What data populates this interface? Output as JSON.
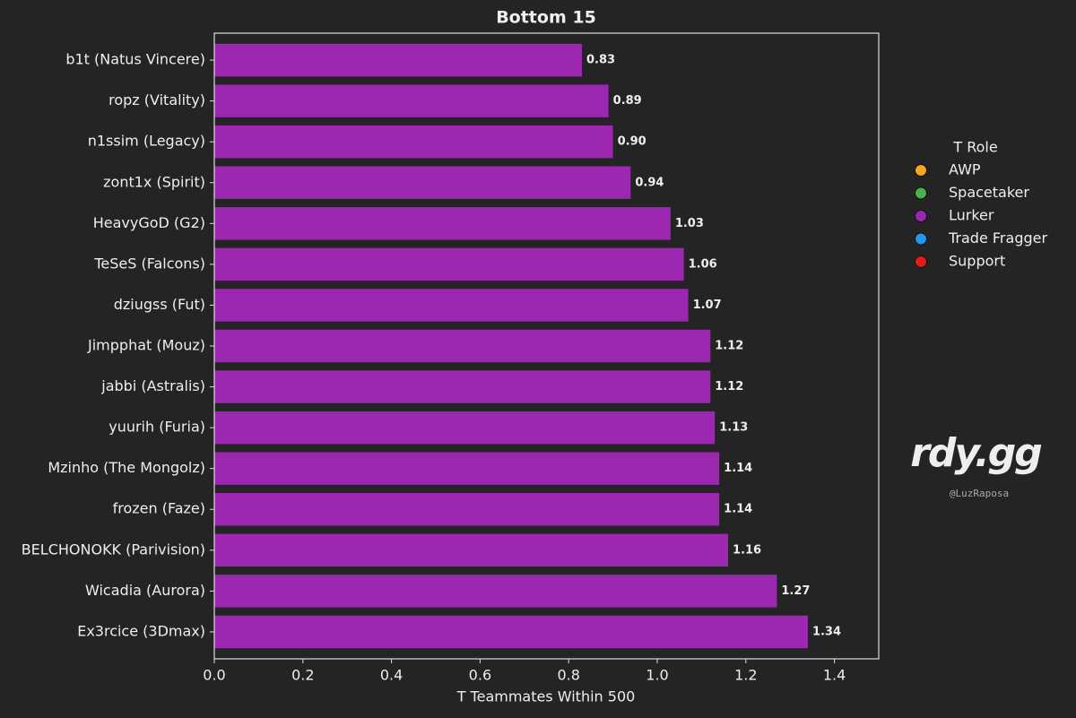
{
  "chart_data": {
    "type": "barh",
    "title": "Bottom 15",
    "xlabel": "T Teammates Within 500",
    "categories": [
      "b1t (Natus Vincere)",
      "ropz (Vitality)",
      "n1ssim (Legacy)",
      "zont1x (Spirit)",
      "HeavyGoD (G2)",
      "TeSeS (Falcons)",
      "dziugss (Fut)",
      "Jimpphat (Mouz)",
      "jabbi (Astralis)",
      "yuurih (Furia)",
      "Mzinho (The Mongolz)",
      "frozen (Faze)",
      "BELCHONOKK (Parivision)",
      "Wicadia (Aurora)",
      "Ex3rcice (3Dmax)"
    ],
    "values": [
      0.83,
      0.89,
      0.9,
      0.94,
      1.03,
      1.06,
      1.07,
      1.12,
      1.12,
      1.13,
      1.14,
      1.14,
      1.16,
      1.27,
      1.34
    ],
    "value_labels": [
      "0.83",
      "0.89",
      "0.90",
      "0.94",
      "1.03",
      "1.06",
      "1.07",
      "1.12",
      "1.12",
      "1.13",
      "1.14",
      "1.14",
      "1.16",
      "1.27",
      "1.34"
    ],
    "color": "#9c27b0",
    "xlim": [
      0,
      1.5
    ],
    "xticks": [
      {
        "value": 0,
        "label": "0.0"
      },
      0.2,
      0.4,
      0.6,
      0.8,
      {
        "value": 1,
        "label": "1.0"
      },
      1.2,
      1.4
    ],
    "legend": {
      "title": "T Role",
      "items": [
        {
          "name": "AWP",
          "color": "#f5a623"
        },
        {
          "name": "Spacetaker",
          "color": "#4caf50"
        },
        {
          "name": "Lurker",
          "color": "#9c27b0"
        },
        {
          "name": "Trade Fragger",
          "color": "#2196f3"
        },
        {
          "name": "Support",
          "color": "#e51c14"
        }
      ]
    },
    "watermark": "rdy.gg",
    "credit": "@LuzRaposa"
  }
}
